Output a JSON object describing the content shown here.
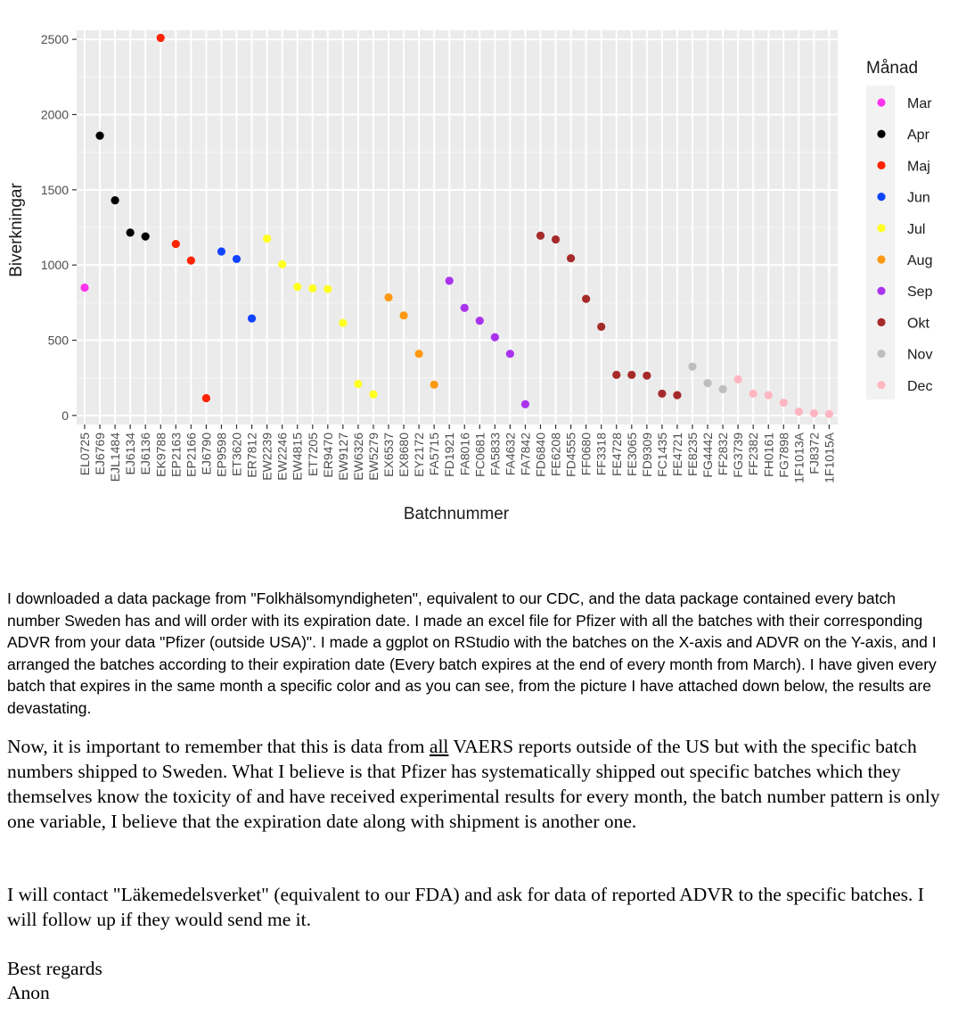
{
  "chart_data": {
    "type": "scatter",
    "xlabel": "Batchnummer",
    "ylabel": "Biverkningar",
    "yticks": [
      0,
      500,
      1000,
      1500,
      2000,
      2500
    ],
    "ylim": [
      -60,
      2560
    ],
    "grid": true,
    "legend": {
      "title": "Månad",
      "position": "right",
      "entries": [
        {
          "label": "Mar",
          "color": "#ff33ee"
        },
        {
          "label": "Apr",
          "color": "#000000"
        },
        {
          "label": "Maj",
          "color": "#ff2200"
        },
        {
          "label": "Jun",
          "color": "#1144ff"
        },
        {
          "label": "Jul",
          "color": "#ffff22"
        },
        {
          "label": "Aug",
          "color": "#ff9911"
        },
        {
          "label": "Sep",
          "color": "#aa33ee"
        },
        {
          "label": "Okt",
          "color": "#a52a2a"
        },
        {
          "label": "Nov",
          "color": "#bebebe"
        },
        {
          "label": "Dec",
          "color": "#ffb6c1"
        }
      ]
    },
    "points": [
      {
        "x": "EL0725",
        "y": 850,
        "month": "Mar"
      },
      {
        "x": "EJ6769",
        "y": 1860,
        "month": "Apr"
      },
      {
        "x": "EJL1484",
        "y": 1430,
        "month": "Apr"
      },
      {
        "x": "EJ6134",
        "y": 1215,
        "month": "Apr"
      },
      {
        "x": "EJ6136",
        "y": 1190,
        "month": "Apr"
      },
      {
        "x": "EK9788",
        "y": 2510,
        "month": "Maj"
      },
      {
        "x": "EP2163",
        "y": 1140,
        "month": "Maj"
      },
      {
        "x": "EP2166",
        "y": 1030,
        "month": "Maj"
      },
      {
        "x": "EJ6790",
        "y": 115,
        "month": "Maj"
      },
      {
        "x": "EP9598",
        "y": 1090,
        "month": "Jun"
      },
      {
        "x": "ET3620",
        "y": 1040,
        "month": "Jun"
      },
      {
        "x": "ER7812",
        "y": 645,
        "month": "Jun"
      },
      {
        "x": "EW2239",
        "y": 1175,
        "month": "Jul"
      },
      {
        "x": "EW2246",
        "y": 1005,
        "month": "Jul"
      },
      {
        "x": "EW4815",
        "y": 855,
        "month": "Jul"
      },
      {
        "x": "ET7205",
        "y": 845,
        "month": "Jul"
      },
      {
        "x": "ER9470",
        "y": 840,
        "month": "Jul"
      },
      {
        "x": "EW9127",
        "y": 615,
        "month": "Jul"
      },
      {
        "x": "EW6326",
        "y": 210,
        "month": "Jul"
      },
      {
        "x": "EW5279",
        "y": 140,
        "month": "Jul"
      },
      {
        "x": "EX6537",
        "y": 785,
        "month": "Aug"
      },
      {
        "x": "EX8680",
        "y": 665,
        "month": "Aug"
      },
      {
        "x": "EY2172",
        "y": 410,
        "month": "Aug"
      },
      {
        "x": "FA5715",
        "y": 205,
        "month": "Aug"
      },
      {
        "x": "FD1921",
        "y": 895,
        "month": "Sep"
      },
      {
        "x": "FA8016",
        "y": 715,
        "month": "Sep"
      },
      {
        "x": "FC0681",
        "y": 630,
        "month": "Sep"
      },
      {
        "x": "FA5833",
        "y": 520,
        "month": "Sep"
      },
      {
        "x": "FA4632",
        "y": 410,
        "month": "Sep"
      },
      {
        "x": "FA7842",
        "y": 75,
        "month": "Sep"
      },
      {
        "x": "FD6840",
        "y": 1195,
        "month": "Okt"
      },
      {
        "x": "FE6208",
        "y": 1170,
        "month": "Okt"
      },
      {
        "x": "FD4555",
        "y": 1045,
        "month": "Okt"
      },
      {
        "x": "FF0680",
        "y": 775,
        "month": "Okt"
      },
      {
        "x": "FF3318",
        "y": 590,
        "month": "Okt"
      },
      {
        "x": "FE4728",
        "y": 270,
        "month": "Okt"
      },
      {
        "x": "FE3065",
        "y": 270,
        "month": "Okt"
      },
      {
        "x": "FD9309",
        "y": 265,
        "month": "Okt"
      },
      {
        "x": "FC1435",
        "y": 145,
        "month": "Okt"
      },
      {
        "x": "FE4721",
        "y": 135,
        "month": "Okt"
      },
      {
        "x": "FE8235",
        "y": 325,
        "month": "Nov"
      },
      {
        "x": "FG4442",
        "y": 215,
        "month": "Nov"
      },
      {
        "x": "FF2832",
        "y": 175,
        "month": "Nov"
      },
      {
        "x": "FG3739",
        "y": 240,
        "month": "Dec"
      },
      {
        "x": "FF2382",
        "y": 145,
        "month": "Dec"
      },
      {
        "x": "FH0161",
        "y": 135,
        "month": "Dec"
      },
      {
        "x": "FG7898",
        "y": 85,
        "month": "Dec"
      },
      {
        "x": "1F1013A",
        "y": 25,
        "month": "Dec"
      },
      {
        "x": "FJ8372",
        "y": 15,
        "month": "Dec"
      },
      {
        "x": "1F1015A",
        "y": 10,
        "month": "Dec"
      }
    ]
  },
  "text": {
    "p1": "I downloaded a data package from \"Folkhälsomyndigheten\", equivalent to our CDC, and the data package contained every batch number Sweden has and will order with its expiration date. I made an excel file for Pfizer with all the batches with their corresponding ADVR from your data \"Pfizer (outside USA)\". I made a ggplot on RStudio with the batches on the X-axis and ADVR on the Y-axis, and I arranged the batches according to their expiration date (Every batch expires at the end of every month from March). I have given every batch that expires in the same month a specific color and as you can see, from the picture I have attached down below, the results are devastating.",
    "p2_before": "Now, it is important to remember that this is data from ",
    "p2_underlined": "all",
    "p2_after": " VAERS reports outside of the US but with the specific batch numbers shipped to Sweden. What I believe is that Pfizer has systematically shipped out specific batches which they themselves know the toxicity of and have received experimental results for every month, the batch number pattern is only one variable, I believe that the expiration date along with shipment is another one.",
    "p3": "I will contact \"Läkemedelsverket\" (equivalent to our FDA) and ask for data of reported ADVR to the specific batches. I will follow up if they would send me it.",
    "p4_line1": "Best regards",
    "p4_line2": "Anon"
  }
}
